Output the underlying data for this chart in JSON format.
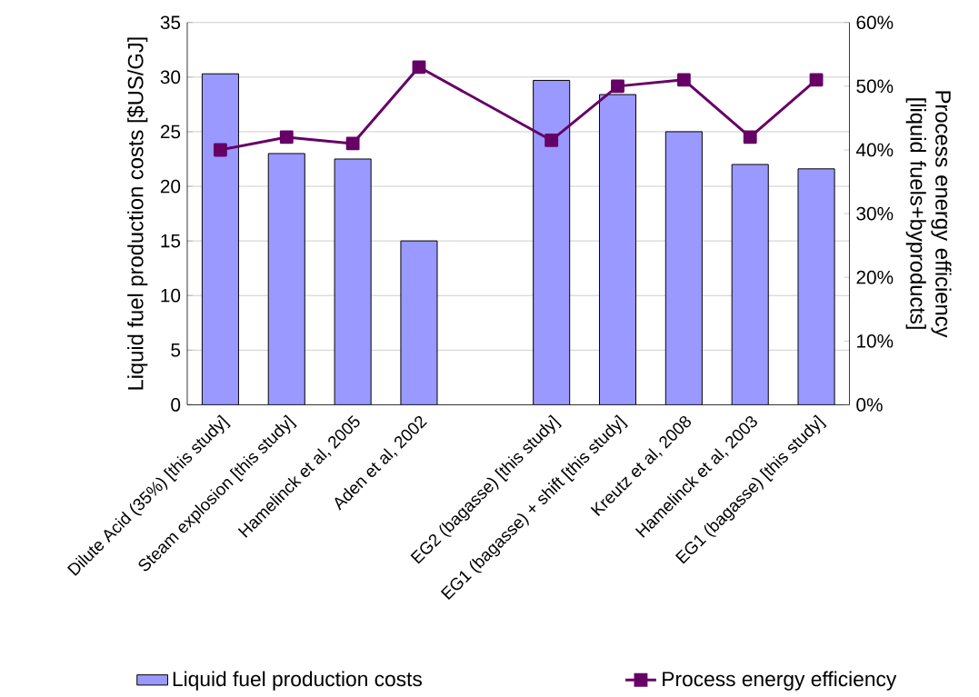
{
  "chart_data": {
    "type": "bar",
    "categories": [
      "Dilute Acid (35%) [this study]",
      "Steam explosion [this study]",
      "Hamelinck et al, 2005",
      "Aden et al, 2002",
      null,
      "EG2 (bagasse) [this study]",
      "EG1 (bagasse) + shift [this study]",
      "Kreutz et al, 2008",
      "Hamelinck et al, 2003",
      "EG1 (bagasse) [this study]"
    ],
    "series": [
      {
        "name": "Liquid fuel production costs",
        "color": "#9999ff",
        "values": [
          30.3,
          23.0,
          22.5,
          15.0,
          null,
          29.7,
          28.4,
          25.0,
          22.0,
          21.6
        ]
      },
      {
        "name": "Process energy efficiency",
        "type": "line",
        "axis": "y2",
        "color": "#660066",
        "marker": "square",
        "values": [
          40,
          42,
          41,
          53,
          null,
          41.5,
          50,
          51,
          42,
          51
        ]
      }
    ],
    "ylabel": "Liquid fuel production costs [$US/GJ]",
    "y2label": "Process energy efficiency [liquid fuels+byproducts]",
    "ylim": [
      0,
      35
    ],
    "yticks": [
      0,
      5,
      10,
      15,
      20,
      25,
      30,
      35
    ],
    "y2lim": [
      0,
      60
    ],
    "y2ticks": [
      {
        "value": 0,
        "label": "0%"
      },
      {
        "value": 10,
        "label": "10%"
      },
      {
        "value": 20,
        "label": "20%"
      },
      {
        "value": 30,
        "label": "30%"
      },
      {
        "value": 40,
        "label": "40%"
      },
      {
        "value": 50,
        "label": "50%"
      },
      {
        "value": 60,
        "label": "60%"
      }
    ],
    "grid": "y",
    "legend": "bottom"
  }
}
